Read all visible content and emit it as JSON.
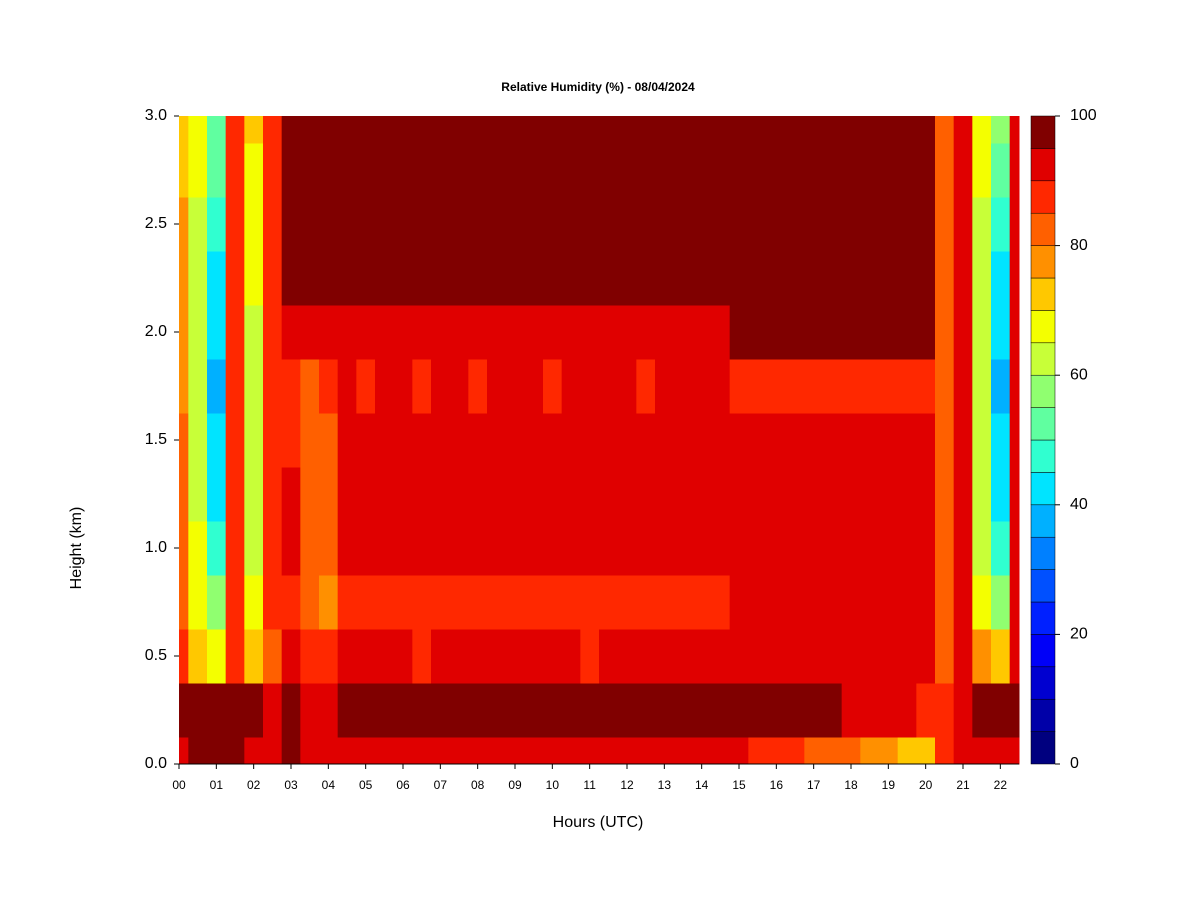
{
  "chart_data": {
    "type": "heatmap",
    "title": "Relative Humidity (%) - 08/04/2024",
    "x_label": "Hours (UTC)",
    "y_label": "Height (km)",
    "xlim": [
      0,
      22.5
    ],
    "ylim": [
      0,
      3
    ],
    "xticks": [
      {
        "value": 0,
        "label": "00"
      },
      {
        "value": 1,
        "label": "01"
      },
      {
        "value": 2,
        "label": "02"
      },
      {
        "value": 3,
        "label": "03"
      },
      {
        "value": 4,
        "label": "04"
      },
      {
        "value": 5,
        "label": "05"
      },
      {
        "value": 6,
        "label": "06"
      },
      {
        "value": 7,
        "label": "07"
      },
      {
        "value": 8,
        "label": "08"
      },
      {
        "value": 9,
        "label": "09"
      },
      {
        "value": 10,
        "label": "10"
      },
      {
        "value": 11,
        "label": "11"
      },
      {
        "value": 12,
        "label": "12"
      },
      {
        "value": 13,
        "label": "13"
      },
      {
        "value": 14,
        "label": "14"
      },
      {
        "value": 15,
        "label": "15"
      },
      {
        "value": 16,
        "label": "16"
      },
      {
        "value": 17,
        "label": "17"
      },
      {
        "value": 18,
        "label": "18"
      },
      {
        "value": 19,
        "label": "19"
      },
      {
        "value": 20,
        "label": "20"
      },
      {
        "value": 21,
        "label": "21"
      },
      {
        "value": 22,
        "label": "22"
      }
    ],
    "yticks": [
      {
        "value": 0,
        "label": "0.0"
      },
      0.5,
      {
        "value": 1,
        "label": "1.0"
      },
      1.5,
      {
        "value": 2,
        "label": "2.0"
      },
      2.5,
      {
        "value": 3,
        "label": "3.0"
      }
    ],
    "x": [
      0,
      0.5,
      1,
      1.5,
      2,
      2.5,
      3,
      3.5,
      4,
      4.5,
      5,
      5.5,
      6,
      6.5,
      7,
      7.5,
      8,
      8.5,
      9,
      9.5,
      10,
      10.5,
      11,
      11.5,
      12,
      12.5,
      13,
      13.5,
      14,
      14.5,
      15,
      15.5,
      16,
      16.5,
      17,
      17.5,
      18,
      18.5,
      19,
      19.5,
      20,
      20.5,
      21,
      21.5,
      22,
      22.5
    ],
    "y": [
      0,
      0.25,
      0.5,
      0.75,
      1,
      1.25,
      1.5,
      1.75,
      2,
      2.25,
      2.5,
      2.75,
      3
    ],
    "z": [
      [
        92,
        96,
        95,
        96,
        93,
        92,
        96,
        92,
        92,
        93,
        93,
        94,
        93,
        93,
        92,
        93,
        94,
        93,
        93,
        93,
        94,
        93,
        93,
        92,
        93,
        93,
        94,
        93,
        92,
        93,
        90,
        88,
        86,
        85,
        84,
        82,
        80,
        78,
        76,
        74,
        72,
        85,
        90,
        92,
        92,
        92
      ],
      [
        97,
        97,
        96,
        96,
        95,
        93,
        97,
        94,
        93,
        97,
        97,
        97,
        97,
        97,
        97,
        97,
        97,
        97,
        97,
        97,
        97,
        97,
        97,
        97,
        97,
        97,
        97,
        97,
        97,
        97,
        97,
        97,
        96,
        96,
        95,
        95,
        94,
        93,
        92,
        90,
        88,
        85,
        92,
        95,
        95,
        96
      ],
      [
        85,
        72,
        68,
        88,
        72,
        82,
        92,
        88,
        86,
        90,
        90,
        91,
        90,
        89,
        90,
        90,
        91,
        90,
        90,
        90,
        91,
        90,
        89,
        90,
        90,
        90,
        91,
        90,
        90,
        90,
        92,
        92,
        92,
        92,
        92,
        92,
        92,
        92,
        92,
        92,
        92,
        82,
        90,
        75,
        70,
        92
      ],
      [
        82,
        66,
        55,
        88,
        65,
        85,
        88,
        82,
        78,
        88,
        87,
        88,
        89,
        87,
        88,
        88,
        87,
        88,
        89,
        88,
        87,
        88,
        88,
        89,
        88,
        87,
        88,
        88,
        89,
        88,
        90,
        90,
        90,
        90,
        90,
        90,
        90,
        90,
        90,
        90,
        90,
        80,
        90,
        65,
        55,
        92
      ],
      [
        82,
        65,
        48,
        88,
        64,
        85,
        90,
        84,
        80,
        92,
        91,
        92,
        93,
        92,
        92,
        91,
        92,
        92,
        93,
        92,
        92,
        91,
        92,
        92,
        93,
        92,
        92,
        91,
        92,
        92,
        92,
        92,
        92,
        92,
        92,
        92,
        92,
        92,
        92,
        92,
        92,
        80,
        90,
        62,
        48,
        92
      ],
      [
        80,
        64,
        42,
        88,
        63,
        85,
        90,
        82,
        80,
        93,
        92,
        93,
        94,
        93,
        93,
        92,
        93,
        93,
        94,
        93,
        93,
        92,
        93,
        93,
        94,
        93,
        93,
        92,
        93,
        93,
        93,
        93,
        93,
        93,
        93,
        93,
        93,
        93,
        93,
        93,
        93,
        80,
        90,
        60,
        42,
        92
      ],
      [
        80,
        63,
        40,
        88,
        62,
        85,
        88,
        80,
        82,
        92,
        91,
        92,
        93,
        92,
        92,
        91,
        92,
        92,
        93,
        92,
        92,
        91,
        92,
        92,
        93,
        92,
        92,
        91,
        92,
        92,
        92,
        92,
        92,
        92,
        92,
        92,
        92,
        92,
        92,
        92,
        92,
        80,
        90,
        60,
        40,
        92
      ],
      [
        78,
        62,
        38,
        88,
        63,
        85,
        88,
        84,
        86,
        90,
        89,
        90,
        91,
        89,
        90,
        90,
        89,
        90,
        91,
        90,
        89,
        90,
        90,
        91,
        90,
        89,
        90,
        90,
        91,
        90,
        88,
        88,
        88,
        88,
        88,
        88,
        88,
        88,
        88,
        88,
        88,
        80,
        90,
        60,
        38,
        92
      ],
      [
        78,
        62,
        40,
        88,
        64,
        85,
        92,
        90,
        90,
        93,
        93,
        93,
        94,
        93,
        93,
        93,
        93,
        93,
        94,
        93,
        93,
        93,
        93,
        94,
        93,
        93,
        93,
        93,
        94,
        93,
        95,
        95,
        95,
        95,
        95,
        95,
        95,
        95,
        95,
        95,
        95,
        80,
        90,
        62,
        40,
        92
      ],
      [
        78,
        63,
        44,
        88,
        65,
        85,
        95,
        95,
        95,
        97,
        97,
        97,
        97,
        97,
        97,
        97,
        97,
        97,
        97,
        97,
        97,
        97,
        97,
        97,
        97,
        97,
        97,
        97,
        97,
        97,
        97,
        97,
        97,
        97,
        97,
        97,
        97,
        97,
        97,
        97,
        97,
        80,
        90,
        62,
        42,
        92
      ],
      [
        76,
        64,
        48,
        88,
        66,
        85,
        96,
        96,
        97,
        97,
        97,
        97,
        97,
        97,
        97,
        97,
        97,
        97,
        97,
        97,
        97,
        97,
        97,
        97,
        97,
        97,
        97,
        97,
        97,
        97,
        97,
        97,
        97,
        97,
        97,
        97,
        97,
        97,
        97,
        97,
        97,
        80,
        90,
        64,
        48,
        92
      ],
      [
        74,
        66,
        50,
        88,
        68,
        85,
        96,
        97,
        97,
        97,
        97,
        97,
        97,
        97,
        97,
        97,
        97,
        97,
        97,
        97,
        97,
        97,
        97,
        97,
        97,
        97,
        97,
        97,
        97,
        97,
        97,
        97,
        97,
        97,
        97,
        97,
        97,
        97,
        97,
        97,
        97,
        82,
        90,
        66,
        52,
        92
      ],
      [
        72,
        68,
        52,
        88,
        70,
        85,
        96,
        97,
        97,
        97,
        97,
        97,
        97,
        97,
        97,
        97,
        97,
        97,
        97,
        97,
        97,
        97,
        97,
        97,
        97,
        97,
        97,
        97,
        97,
        97,
        97,
        97,
        97,
        97,
        97,
        97,
        97,
        97,
        97,
        97,
        97,
        82,
        90,
        68,
        55,
        92
      ]
    ],
    "levels": [
      0,
      5,
      10,
      15,
      20,
      25,
      30,
      35,
      40,
      45,
      50,
      55,
      60,
      65,
      70,
      75,
      80,
      85,
      90,
      95,
      100
    ],
    "colors": [
      "#00007f",
      "#0000a8",
      "#0000d0",
      "#0000f8",
      "#0020ff",
      "#0050ff",
      "#0080ff",
      "#00b0ff",
      "#00e4ff",
      "#30ffd0",
      "#60ffa0",
      "#90ff70",
      "#c8ff38",
      "#f4ff00",
      "#ffc800",
      "#ff9000",
      "#ff6000",
      "#ff2800",
      "#e00000",
      "#800000"
    ],
    "colorbar_ticks": [
      0,
      20,
      40,
      60,
      80,
      100
    ]
  }
}
